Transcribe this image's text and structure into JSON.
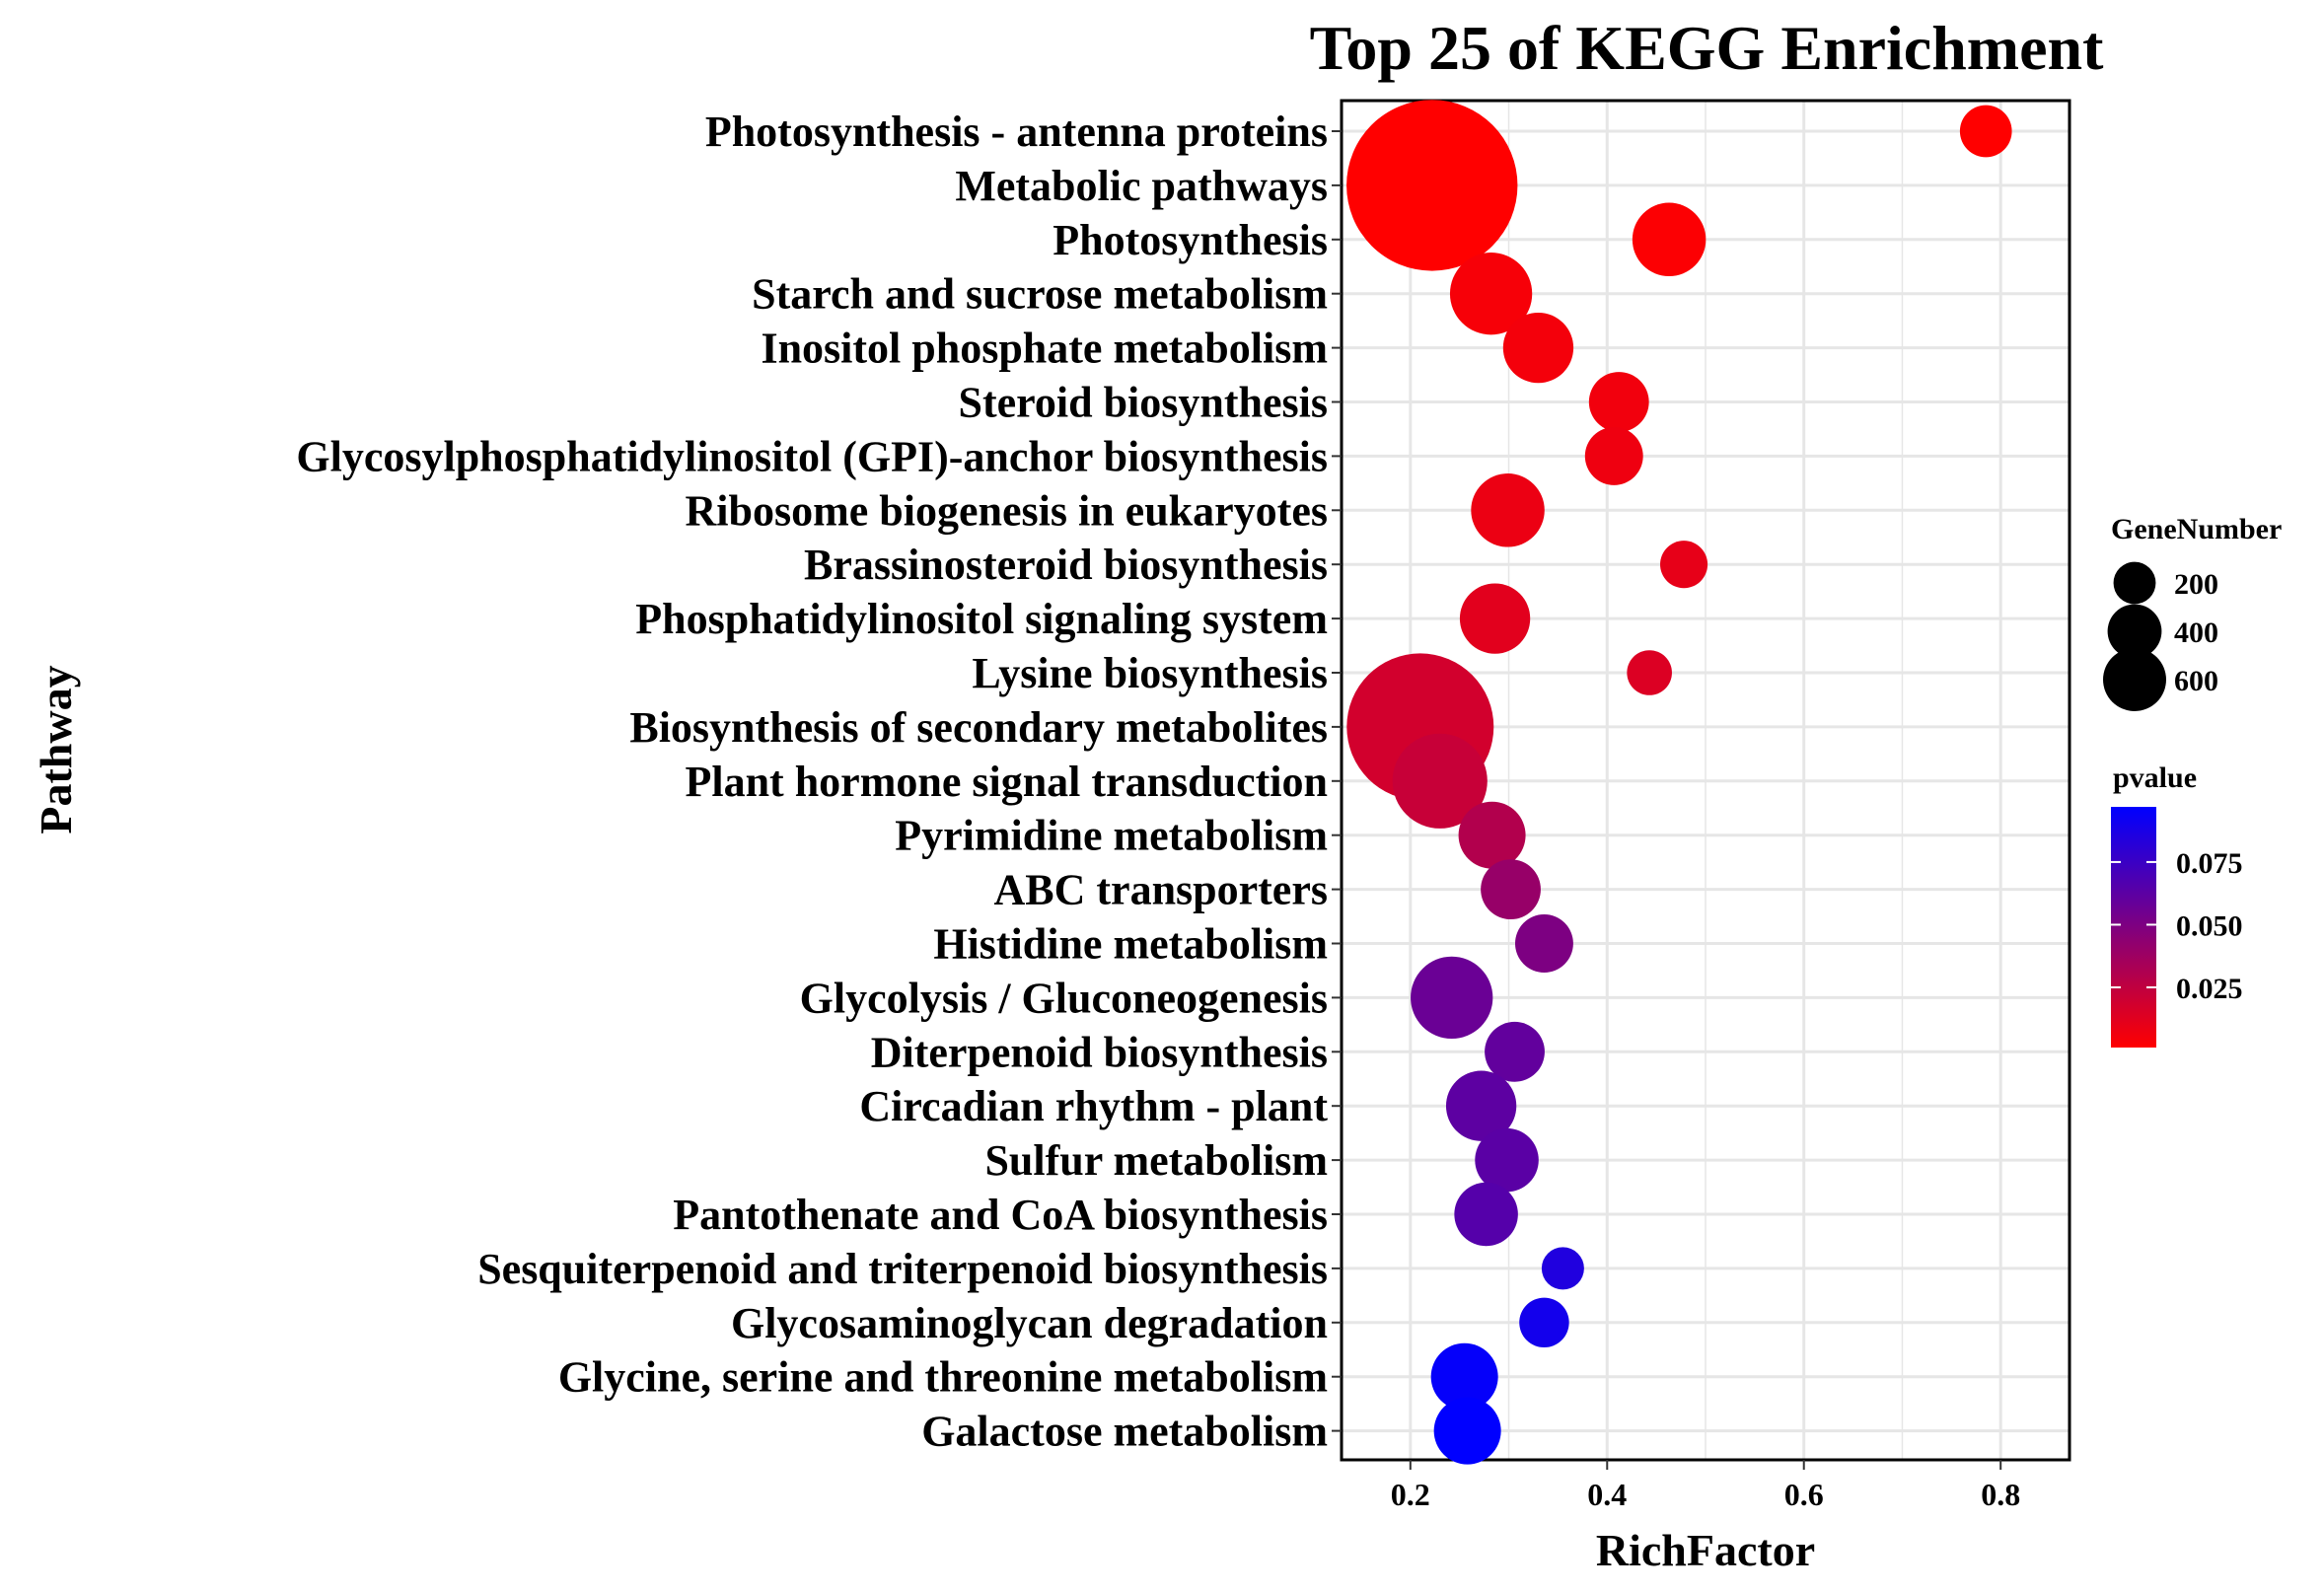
{
  "chart_data": {
    "type": "scatter",
    "title": "Top 25 of KEGG Enrichment",
    "xlabel": "RichFactor",
    "ylabel": "Pathway",
    "xlim": [
      0.13,
      0.87
    ],
    "xticks": [
      {
        "value": 0.2,
        "label": "0.2"
      },
      {
        "value": 0.4,
        "label": "0.4"
      },
      {
        "value": 0.6,
        "label": "0.6"
      },
      {
        "value": 0.8,
        "label": "0.8"
      }
    ],
    "grid": true,
    "points": [
      {
        "pathway": "Photosynthesis - antenna proteins",
        "rich_factor": 0.785,
        "gene_number": 60,
        "pvalue": 0.001
      },
      {
        "pathway": "Metabolic pathways",
        "rich_factor": 0.222,
        "gene_number": 650,
        "pvalue": 0.001
      },
      {
        "pathway": "Photosynthesis",
        "rich_factor": 0.463,
        "gene_number": 120,
        "pvalue": 0.002
      },
      {
        "pathway": "Starch and sucrose metabolism",
        "rich_factor": 0.282,
        "gene_number": 150,
        "pvalue": 0.004
      },
      {
        "pathway": "Inositol phosphate metabolism",
        "rich_factor": 0.33,
        "gene_number": 110,
        "pvalue": 0.005
      },
      {
        "pathway": "Steroid biosynthesis",
        "rich_factor": 0.412,
        "gene_number": 80,
        "pvalue": 0.006
      },
      {
        "pathway": "Glycosylphosphatidylinositol (GPI)-anchor biosynthesis",
        "rich_factor": 0.407,
        "gene_number": 75,
        "pvalue": 0.007
      },
      {
        "pathway": "Ribosome biogenesis in eukaryotes",
        "rich_factor": 0.299,
        "gene_number": 120,
        "pvalue": 0.008
      },
      {
        "pathway": "Brassinosteroid biosynthesis",
        "rich_factor": 0.478,
        "gene_number": 50,
        "pvalue": 0.01
      },
      {
        "pathway": "Phosphatidylinositol signaling system",
        "rich_factor": 0.286,
        "gene_number": 110,
        "pvalue": 0.012
      },
      {
        "pathway": "Lysine biosynthesis",
        "rich_factor": 0.443,
        "gene_number": 45,
        "pvalue": 0.014
      },
      {
        "pathway": "Biosynthesis of secondary metabolites",
        "rich_factor": 0.21,
        "gene_number": 480,
        "pvalue": 0.018
      },
      {
        "pathway": "Plant hormone signal transduction",
        "rich_factor": 0.23,
        "gene_number": 200,
        "pvalue": 0.022
      },
      {
        "pathway": "Pyrimidine metabolism",
        "rich_factor": 0.283,
        "gene_number": 100,
        "pvalue": 0.03
      },
      {
        "pathway": "ABC transporters",
        "rich_factor": 0.302,
        "gene_number": 80,
        "pvalue": 0.04
      },
      {
        "pathway": "Histidine metabolism",
        "rich_factor": 0.336,
        "gene_number": 75,
        "pvalue": 0.05
      },
      {
        "pathway": "Glycolysis / Gluconeogenesis",
        "rich_factor": 0.242,
        "gene_number": 150,
        "pvalue": 0.057
      },
      {
        "pathway": "Diterpenoid biosynthesis",
        "rich_factor": 0.306,
        "gene_number": 80,
        "pvalue": 0.06
      },
      {
        "pathway": "Circadian rhythm - plant",
        "rich_factor": 0.272,
        "gene_number": 110,
        "pvalue": 0.062
      },
      {
        "pathway": "Sulfur metabolism",
        "rich_factor": 0.298,
        "gene_number": 90,
        "pvalue": 0.063
      },
      {
        "pathway": "Pantothenate and CoA biosynthesis",
        "rich_factor": 0.277,
        "gene_number": 90,
        "pvalue": 0.065
      },
      {
        "pathway": "Sesquiterpenoid and triterpenoid biosynthesis",
        "rich_factor": 0.355,
        "gene_number": 40,
        "pvalue": 0.085
      },
      {
        "pathway": "Glycosaminoglycan degradation",
        "rich_factor": 0.336,
        "gene_number": 55,
        "pvalue": 0.09
      },
      {
        "pathway": "Glycine, serine and threonine metabolism",
        "rich_factor": 0.255,
        "gene_number": 100,
        "pvalue": 0.095
      },
      {
        "pathway": "Galactose metabolism",
        "rich_factor": 0.258,
        "gene_number": 100,
        "pvalue": 0.097
      }
    ],
    "legend_size": {
      "title": "GeneNumber",
      "entries": [
        {
          "value": 200,
          "label": "200"
        },
        {
          "value": 400,
          "label": "400"
        },
        {
          "value": 600,
          "label": "600"
        }
      ]
    },
    "legend_color": {
      "title": "pvalue",
      "low_color": "#ff0000",
      "high_color": "#0000ff",
      "range": [
        0.001,
        0.097
      ],
      "ticks": [
        {
          "value": 0.025,
          "label": "0.025"
        },
        {
          "value": 0.05,
          "label": "0.050"
        },
        {
          "value": 0.075,
          "label": "0.075"
        }
      ]
    }
  }
}
